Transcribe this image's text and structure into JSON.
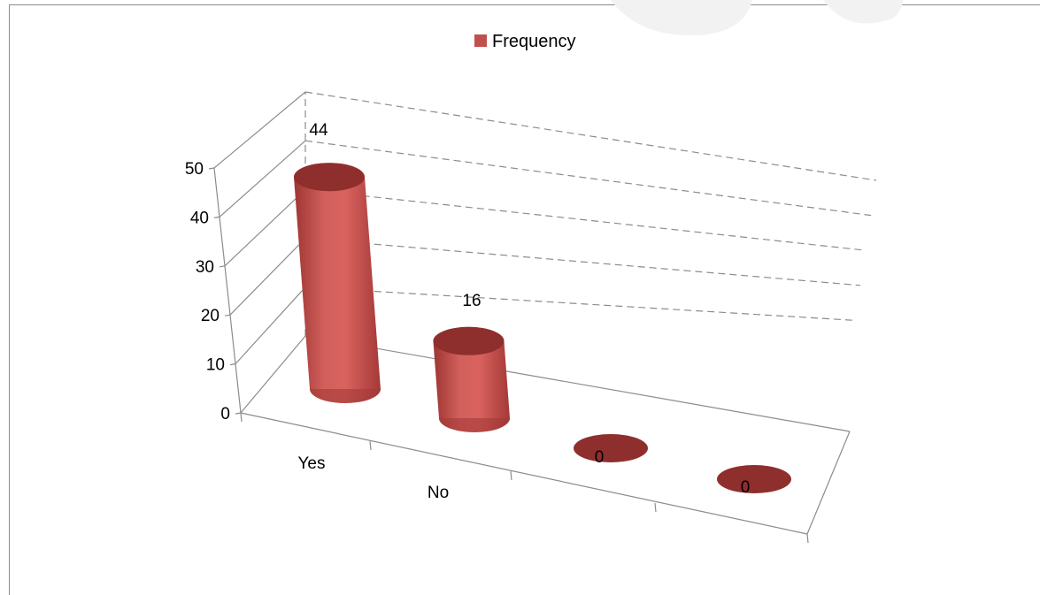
{
  "chart_data": {
    "type": "bar",
    "style": "3d-cylinder",
    "categories": [
      "Yes",
      "No",
      "",
      ""
    ],
    "series": [
      {
        "name": "Frequency",
        "values": [
          44,
          16,
          0,
          0
        ]
      }
    ],
    "ylim": [
      0,
      50
    ],
    "yticks": [
      0,
      10,
      20,
      30,
      40,
      50
    ],
    "grid": true,
    "legend": "top-center",
    "colors": {
      "bar": "#c0504d",
      "bar_top": "#8e2f2d",
      "grid": "#8c8c8c",
      "text": "#000000"
    }
  }
}
